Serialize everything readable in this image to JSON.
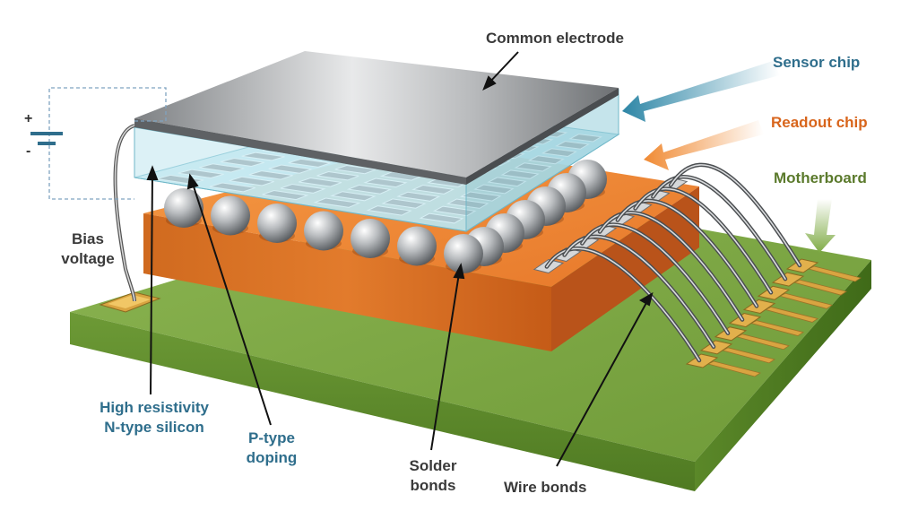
{
  "labels": {
    "common_electrode": "Common electrode",
    "sensor_chip": "Sensor chip",
    "readout_chip": "Readout chip",
    "motherboard": "Motherboard",
    "bias_line1": "Bias",
    "bias_line2": "voltage",
    "hr_line1": "High resistivity",
    "hr_line2": "N-type silicon",
    "ptype_line1": "P-type",
    "ptype_line2": "doping",
    "solder_line1": "Solder",
    "solder_line2": "bonds",
    "wire_bonds": "Wire bonds"
  },
  "battery": {
    "plus": "+",
    "minus": "-"
  },
  "colors": {
    "text_dark": "#3a3a3a",
    "text_teal": "#2f6e8c",
    "text_orange": "#d8651c",
    "text_green": "#5b7a2c",
    "board_top": "#7fab45",
    "board_side": "#5d8a2c",
    "readout_top": "#f08a33",
    "readout_side": "#c95c17",
    "electrode_top": "#c9cbcd",
    "sensor_glass": "#bfe6ee",
    "gold": "#d9a441"
  },
  "icons": [
    "battery-symbol-icon",
    "arrow-icon"
  ]
}
